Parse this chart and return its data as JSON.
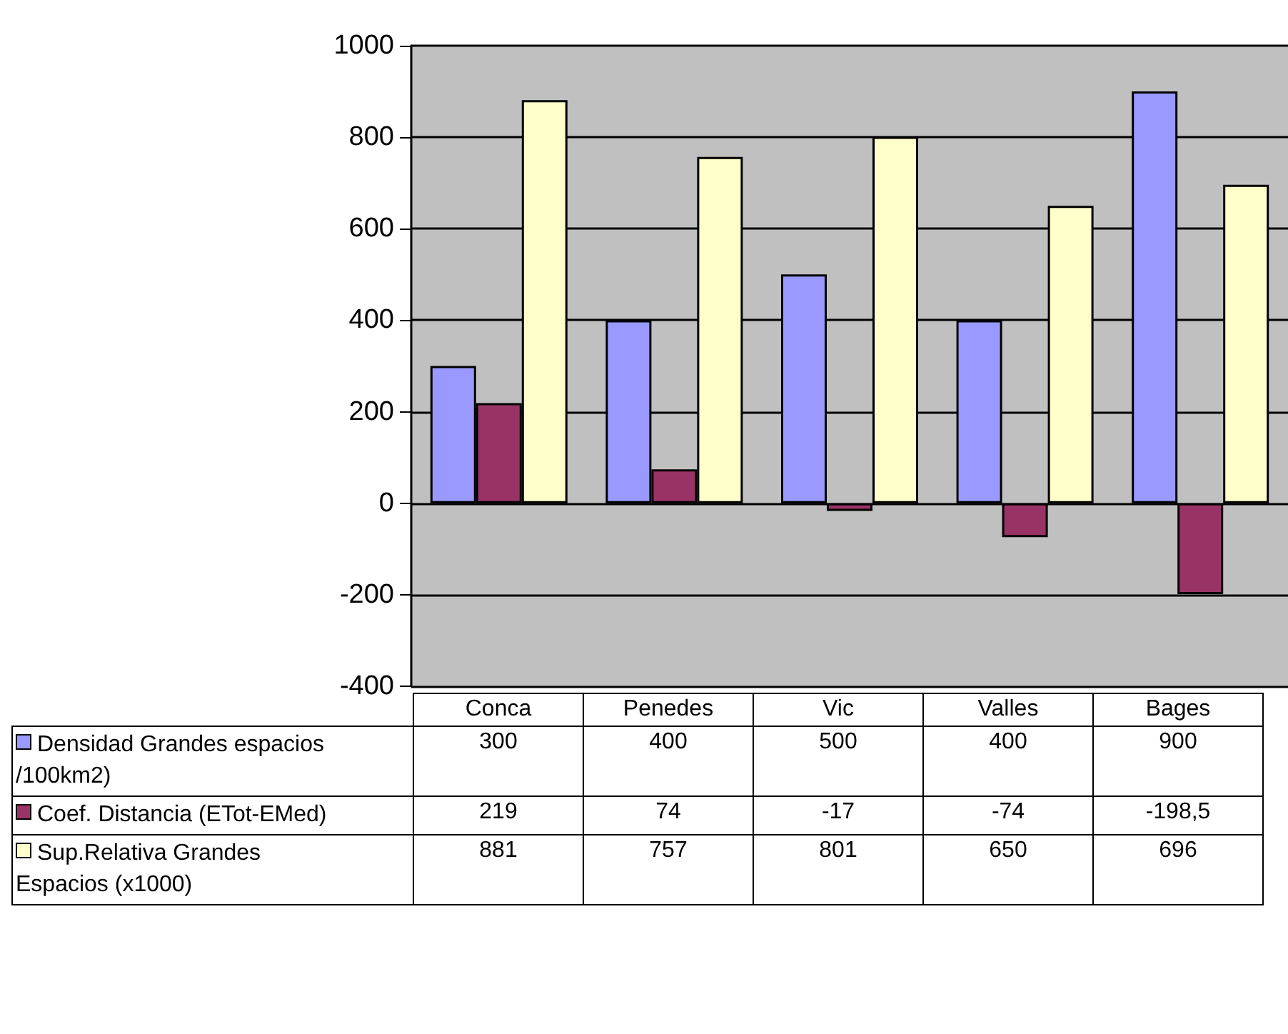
{
  "chart_data": {
    "type": "bar",
    "categories": [
      "Conca",
      "Penedes",
      "Vic",
      "Valles",
      "Bages"
    ],
    "series": [
      {
        "name": "Densidad Grandes espacios /100km2)",
        "color": "#9999ff",
        "values": [
          300,
          400,
          500,
          400,
          900
        ],
        "value_labels": [
          "300",
          "400",
          "500",
          "400",
          "900"
        ]
      },
      {
        "name": "Coef. Distancia (ETot-EMed)",
        "color": "#993366",
        "values": [
          219,
          74,
          -17,
          -74,
          -198.5
        ],
        "value_labels": [
          "219",
          "74",
          "-17",
          "-74",
          "-198,5"
        ]
      },
      {
        "name": "Sup.Relativa Grandes Espacios (x1000)",
        "color": "#ffffcc",
        "values": [
          881,
          757,
          801,
          650,
          696
        ],
        "value_labels": [
          "881",
          "757",
          "801",
          "650",
          "696"
        ]
      }
    ],
    "ylim": [
      -400,
      1000
    ],
    "yticks": [
      -400,
      -200,
      0,
      200,
      400,
      600,
      800,
      1000
    ],
    "grid": "y",
    "legend": "bottom"
  }
}
